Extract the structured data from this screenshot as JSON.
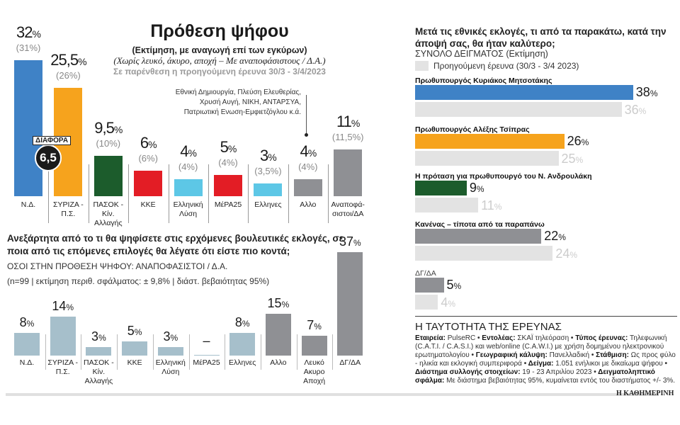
{
  "vote_intention": {
    "title": "Πρόθεση ψήφου",
    "subtitle1": "(Εκτίμηση, με αναγωγή επί των εγκύρων)",
    "subtitle2": "(Χωρίς λευκό, άκυρο, αποχή – Με αναποφάσιστους / Δ.Α.)",
    "subtitle3": "Σε παρένθεση η προηγούμενη έρευνα 30/3 - 3/4/2023",
    "note": "Εθνική Δημιουργία, Πλεύση Ελευθερίας, Χρυσή Αυγή, ΝΙΚΗ, ΑΝΤΑΡΣΥΑ, Πατριωτική Ενωση-Εμφιετζόγλου κ.ά.",
    "diff_label": "ΔΙΑΦΟΡΑ",
    "diff_value": "6,5"
  },
  "undecided": {
    "question": "Ανεξάρτητα από το τι θα ψηφίσετε στις ερχόμενες βουλευτικές εκλογές, σε ποια από τις επόμενες επιλογές θα λέγατε ότι είστε πιο κοντά;",
    "subtitle": "ΟΣΟΙ ΣΤΗΝ ΠΡΟΘΕΣΗ ΨΗΦΟΥ: ΑΝΑΠΟΦΑΣΙΣΤΟΙ / Δ.Α.",
    "note": "(n=99 | εκτίμηση περιθ. σφάλματος: ± 9,8% | διάστ. βεβαιότητας 95%)"
  },
  "pm": {
    "question": "Μετά τις εθνικές εκλογές, τι από τα παρακάτω, κατά την άποψή σας, θα ήταν καλύτερο;",
    "subtitle": "ΣΥΝΟΛΟ ΔΕΙΓΜΑΤΟΣ (Εκτίμηση)",
    "legend_prev": "Προηγούμενη έρευνα (30/3 - 3/4 2023)"
  },
  "survey": {
    "title": "Η ΤΑΥΤΟΤΗΤΑ ΤΗΣ ΕΡΕΥΝΑΣ",
    "items": [
      {
        "k": "Εταιρεία:",
        "v": "PulseRC"
      },
      {
        "k": "Εντολέας:",
        "v": "ΣΚΑΪ τηλεόραση"
      },
      {
        "k": "Τύπος έρευνας:",
        "v": "Τηλεφωνική (C.A.T.I. / C.A.S.I.) και web/online (C.A.W.I.) με χρήση δομημένου ηλεκτρονικού ερωτηματολογίου"
      },
      {
        "k": "Γεωγραφική κάλυψη:",
        "v": "Πανελλαδική"
      },
      {
        "k": "Στάθμιση:",
        "v": "Ως προς φύλο - ηλικία και εκλογική συμπεριφορά"
      },
      {
        "k": "Δείγμα:",
        "v": "1.051 ενήλικοι με δικαίωμα ψήφου"
      },
      {
        "k": "Διάστημα συλλογής στοιχείων:",
        "v": "19 - 23 Απριλίου 2023"
      },
      {
        "k": "Δειγματοληπτικό σφάλμα:",
        "v": "Με διάστημα βεβαιότητας 95%, κυμαίνεται εντός του διαστήματος +/- 3%."
      }
    ]
  },
  "footer": {
    "brand": "Η ΚΑΘΗΜΕΡΙΝΗ"
  },
  "chart_data": [
    {
      "type": "bar",
      "title": "Πρόθεση ψήφου",
      "categories": [
        "Ν.Δ.",
        "ΣΥΡΙΖΑ - Π.Σ.",
        "ΠΑΣΟΚ - Κίν. Αλλαγής",
        "ΚΚΕ",
        "Ελληνική Λύση",
        "ΜέΡΑ25",
        "Ελληνες",
        "Αλλο",
        "Αναποφά-σιστοι/ΔΑ"
      ],
      "values": [
        32,
        25.5,
        9.5,
        6,
        4,
        5,
        3,
        4,
        11
      ],
      "value_labels": [
        "32",
        "25,5",
        "9,5",
        "6",
        "4",
        "5",
        "3",
        "4",
        "11"
      ],
      "previous_labels": [
        "(31%)",
        "(26%)",
        "(10%)",
        "(6%)",
        "(4%)",
        "(4%)",
        "(3,5%)",
        "(4%)",
        "(11,5%)"
      ],
      "previous": [
        31,
        26,
        10,
        6,
        4,
        4,
        3.5,
        4,
        11.5
      ],
      "colors": [
        "#3f82c6",
        "#f6a31d",
        "#1c5c2c",
        "#e31d25",
        "#5dc7e6",
        "#e31d25",
        "#5dc7e6",
        "#8f9094",
        "#8f9094"
      ],
      "unit": "%"
    },
    {
      "type": "bar",
      "categories": [
        "Ν.Δ.",
        "ΣΥΡΙΖΑ - Π.Σ.",
        "ΠΑΣΟΚ - Κίν. Αλλαγής",
        "ΚΚΕ",
        "Ελληνική Λύση",
        "ΜέΡΑ25",
        "Ελληνες",
        "Αλλο",
        "Λευκό Ακυρο Αποχή",
        "ΔΓ/ΔΑ"
      ],
      "values": [
        8,
        14,
        3,
        5,
        3,
        null,
        8,
        15,
        7,
        37
      ],
      "value_labels": [
        "8",
        "14",
        "3",
        "5",
        "3",
        "–",
        "8",
        "15",
        "7",
        "37"
      ],
      "colors": [
        "#a6bfcb",
        "#a6bfcb",
        "#a6bfcb",
        "#a6bfcb",
        "#a6bfcb",
        "#a6bfcb",
        "#a6bfcb",
        "#8f9094",
        "#8f9094",
        "#8f9094"
      ],
      "unit": "%"
    },
    {
      "type": "bar",
      "orientation": "horizontal",
      "categories": [
        "Πρωθυπουργός Κυριάκος Μητσοτάκης",
        "Πρωθυπουργός Αλέξης Τσίπρας",
        "Η πρόταση για πρωθυπουργό του Ν. Ανδρουλάκη",
        "Κανένας – τίποτα από τα παραπάνω",
        "ΔΓ/ΔΑ"
      ],
      "series": [
        {
          "name": "ΣΥΝΟΛΟ ΔΕΙΓΜΑΤΟΣ (Εκτίμηση)",
          "values": [
            38,
            26,
            9,
            22,
            5
          ]
        },
        {
          "name": "Προηγούμενη έρευνα (30/3 - 3/4 2023)",
          "values": [
            36,
            25,
            11,
            24,
            4
          ]
        }
      ],
      "colors": [
        "#3f82c6",
        "#f6a31d",
        "#1c5c2c",
        "#8f9094",
        "#8f9094"
      ],
      "previous_color": "#e3e3e3",
      "unit": "%"
    }
  ]
}
